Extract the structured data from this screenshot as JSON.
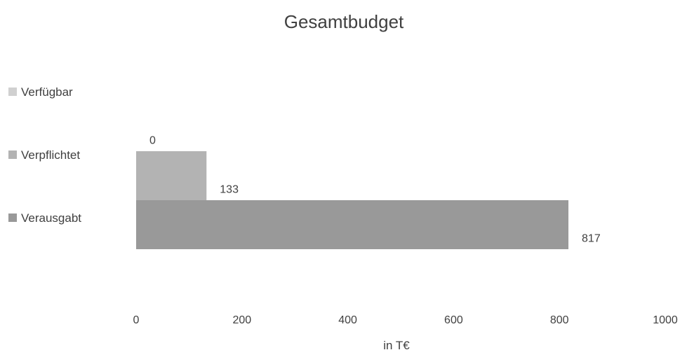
{
  "chart_data": {
    "type": "bar",
    "orientation": "horizontal",
    "stacked": true,
    "title": "Gesamtbudget",
    "xlabel": "in T€",
    "ylabel": "",
    "xlim": [
      0,
      1000
    ],
    "x_ticks": [
      "0",
      "200",
      "400",
      "600",
      "800",
      "1000"
    ],
    "grid": false,
    "legend_position": "left",
    "series": [
      {
        "name": "Verausgabt",
        "values": [
          817
        ],
        "color": "#999999"
      },
      {
        "name": "Verpflichtet",
        "values": [
          133
        ],
        "color": "#b3b3b3"
      },
      {
        "name": "Verfügbar",
        "values": [
          0
        ],
        "color": "#d0d0d0"
      }
    ],
    "data_labels": [
      "817",
      "133",
      "0"
    ]
  }
}
